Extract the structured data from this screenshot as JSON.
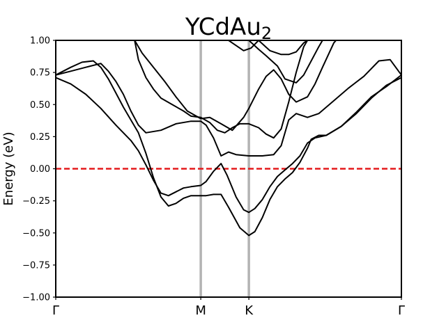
{
  "chart_data": {
    "type": "line",
    "title": "YCdAu",
    "title_subscript": "2",
    "ylabel": "Energy (eV)",
    "xlabel": "",
    "ylim": [
      -1.0,
      1.0
    ],
    "xlim": [
      0,
      4.6
    ],
    "y_ticks": [
      -1.0,
      -0.75,
      -0.5,
      -0.25,
      0.0,
      0.25,
      0.5,
      0.75,
      1.0
    ],
    "y_tick_labels": [
      "−1.00",
      "−0.75",
      "−0.50",
      "−0.25",
      "0.00",
      "0.25",
      "0.50",
      "0.75",
      "1.00"
    ],
    "kpoints": [
      {
        "label": "Γ",
        "x": 0.0
      },
      {
        "label": "M",
        "x": 1.93
      },
      {
        "label": "K",
        "x": 2.57
      },
      {
        "label": "Γ",
        "x": 4.6
      }
    ],
    "fermi_level": 0.0,
    "grid": false,
    "colors": {
      "bands": "#000000",
      "fermi": "#e41a1c",
      "kpoint_lines": "#b3b3b3"
    },
    "series": [
      {
        "values": [
          [
            0,
            0.71
          ],
          [
            0.2,
            0.66
          ],
          [
            0.4,
            0.58
          ],
          [
            0.6,
            0.47
          ],
          [
            0.8,
            0.34
          ],
          [
            1.0,
            0.22
          ],
          [
            1.1,
            0.14
          ],
          [
            1.2,
            0.03
          ],
          [
            1.3,
            -0.09
          ],
          [
            1.4,
            -0.19
          ],
          [
            1.5,
            -0.21
          ],
          [
            1.6,
            -0.18
          ],
          [
            1.7,
            -0.15
          ],
          [
            1.8,
            -0.14
          ],
          [
            1.93,
            -0.13
          ],
          [
            2.0,
            -0.1
          ],
          [
            2.1,
            -0.02
          ],
          [
            2.2,
            0.04
          ],
          [
            2.28,
            -0.05
          ],
          [
            2.4,
            -0.22
          ],
          [
            2.5,
            -0.32
          ],
          [
            2.57,
            -0.34
          ],
          [
            2.65,
            -0.31
          ],
          [
            2.75,
            -0.24
          ],
          [
            2.85,
            -0.14
          ],
          [
            2.95,
            -0.06
          ],
          [
            3.05,
            -0.01
          ],
          [
            3.15,
            0.04
          ],
          [
            3.25,
            0.1
          ],
          [
            3.35,
            0.2
          ],
          [
            3.45,
            0.24
          ],
          [
            3.6,
            0.26
          ],
          [
            3.8,
            0.33
          ],
          [
            4.0,
            0.43
          ],
          [
            4.2,
            0.55
          ],
          [
            4.4,
            0.65
          ],
          [
            4.6,
            0.71
          ]
        ]
      },
      {
        "values": [
          [
            0,
            0.73
          ],
          [
            0.2,
            0.79
          ],
          [
            0.35,
            0.83
          ],
          [
            0.5,
            0.84
          ],
          [
            0.6,
            0.79
          ],
          [
            0.7,
            0.7
          ],
          [
            0.8,
            0.59
          ],
          [
            0.9,
            0.48
          ],
          [
            1.0,
            0.38
          ],
          [
            1.1,
            0.28
          ],
          [
            1.2,
            0.12
          ],
          [
            1.3,
            -0.07
          ],
          [
            1.4,
            -0.22
          ],
          [
            1.5,
            -0.29
          ],
          [
            1.6,
            -0.27
          ],
          [
            1.7,
            -0.23
          ],
          [
            1.8,
            -0.21
          ],
          [
            1.93,
            -0.21
          ],
          [
            2.0,
            -0.21
          ],
          [
            2.1,
            -0.2
          ],
          [
            2.2,
            -0.2
          ],
          [
            2.3,
            -0.3
          ],
          [
            2.45,
            -0.46
          ],
          [
            2.57,
            -0.52
          ],
          [
            2.65,
            -0.49
          ],
          [
            2.75,
            -0.38
          ],
          [
            2.85,
            -0.24
          ],
          [
            2.95,
            -0.14
          ],
          [
            3.05,
            -0.08
          ],
          [
            3.15,
            -0.03
          ],
          [
            3.25,
            0.05
          ],
          [
            3.35,
            0.16
          ],
          [
            3.4,
            0.23
          ],
          [
            3.5,
            0.26
          ],
          [
            3.6,
            0.26
          ],
          [
            3.8,
            0.33
          ],
          [
            4.0,
            0.44
          ],
          [
            4.2,
            0.56
          ],
          [
            4.4,
            0.64
          ],
          [
            4.6,
            0.73
          ]
        ]
      },
      {
        "values": [
          [
            0,
            0.73
          ],
          [
            0.2,
            0.76
          ],
          [
            0.4,
            0.79
          ],
          [
            0.6,
            0.82
          ],
          [
            0.7,
            0.76
          ],
          [
            0.8,
            0.68
          ],
          [
            0.9,
            0.58
          ],
          [
            1.0,
            0.45
          ],
          [
            1.1,
            0.34
          ],
          [
            1.2,
            0.28
          ],
          [
            1.4,
            0.3
          ],
          [
            1.6,
            0.35
          ],
          [
            1.8,
            0.37
          ],
          [
            1.93,
            0.37
          ],
          [
            2.0,
            0.34
          ],
          [
            2.1,
            0.24
          ],
          [
            2.2,
            0.1
          ],
          [
            2.3,
            0.13
          ],
          [
            2.4,
            0.11
          ],
          [
            2.57,
            0.1
          ],
          [
            2.75,
            0.1
          ],
          [
            2.9,
            0.11
          ],
          [
            3.0,
            0.18
          ],
          [
            3.1,
            0.38
          ],
          [
            3.2,
            0.43
          ],
          [
            3.35,
            0.4
          ],
          [
            3.5,
            0.43
          ],
          [
            3.7,
            0.53
          ],
          [
            3.9,
            0.63
          ],
          [
            4.1,
            0.72
          ],
          [
            4.3,
            0.84
          ],
          [
            4.45,
            0.85
          ],
          [
            4.6,
            0.73
          ]
        ]
      },
      {
        "values": [
          [
            1.05,
            1.0
          ],
          [
            1.1,
            0.85
          ],
          [
            1.2,
            0.71
          ],
          [
            1.3,
            0.62
          ],
          [
            1.4,
            0.55
          ],
          [
            1.55,
            0.5
          ],
          [
            1.7,
            0.45
          ],
          [
            1.8,
            0.41
          ],
          [
            1.93,
            0.4
          ],
          [
            2.05,
            0.36
          ],
          [
            2.15,
            0.3
          ],
          [
            2.25,
            0.28
          ],
          [
            2.35,
            0.32
          ],
          [
            2.45,
            0.35
          ],
          [
            2.57,
            0.35
          ],
          [
            2.7,
            0.32
          ],
          [
            2.8,
            0.27
          ],
          [
            2.9,
            0.24
          ],
          [
            3.0,
            0.31
          ],
          [
            3.1,
            0.52
          ],
          [
            3.2,
            0.75
          ],
          [
            3.3,
            0.95
          ],
          [
            3.35,
            1.0
          ]
        ]
      },
      {
        "values": [
          [
            1.05,
            1.0
          ],
          [
            1.15,
            0.9
          ],
          [
            1.3,
            0.79
          ],
          [
            1.45,
            0.68
          ],
          [
            1.6,
            0.56
          ],
          [
            1.75,
            0.45
          ],
          [
            1.93,
            0.39
          ],
          [
            2.05,
            0.4
          ],
          [
            2.2,
            0.35
          ],
          [
            2.35,
            0.3
          ],
          [
            2.5,
            0.4
          ],
          [
            2.57,
            0.47
          ],
          [
            2.7,
            0.62
          ],
          [
            2.8,
            0.72
          ],
          [
            2.9,
            0.77
          ],
          [
            3.0,
            0.7
          ],
          [
            3.1,
            0.58
          ],
          [
            3.2,
            0.52
          ],
          [
            3.35,
            0.56
          ],
          [
            3.45,
            0.66
          ],
          [
            3.55,
            0.79
          ],
          [
            3.7,
            0.98
          ],
          [
            3.73,
            1.0
          ]
        ]
      },
      {
        "values": [
          [
            2.57,
            1.0
          ],
          [
            2.7,
            0.93
          ],
          [
            2.8,
            0.88
          ],
          [
            2.95,
            0.8
          ],
          [
            3.05,
            0.7
          ],
          [
            3.2,
            0.67
          ],
          [
            3.3,
            0.73
          ],
          [
            3.4,
            0.84
          ],
          [
            3.5,
            0.95
          ],
          [
            3.55,
            1.0
          ]
        ]
      },
      {
        "values": [
          [
            2.3,
            1.0
          ],
          [
            2.4,
            0.96
          ],
          [
            2.5,
            0.92
          ],
          [
            2.6,
            0.94
          ],
          [
            2.7,
            1.0
          ]
        ]
      },
      {
        "values": [
          [
            2.7,
            1.0
          ],
          [
            2.85,
            0.92
          ],
          [
            3.0,
            0.89
          ],
          [
            3.1,
            0.89
          ],
          [
            3.2,
            0.91
          ],
          [
            3.3,
            0.98
          ],
          [
            3.35,
            1.0
          ]
        ]
      }
    ]
  }
}
